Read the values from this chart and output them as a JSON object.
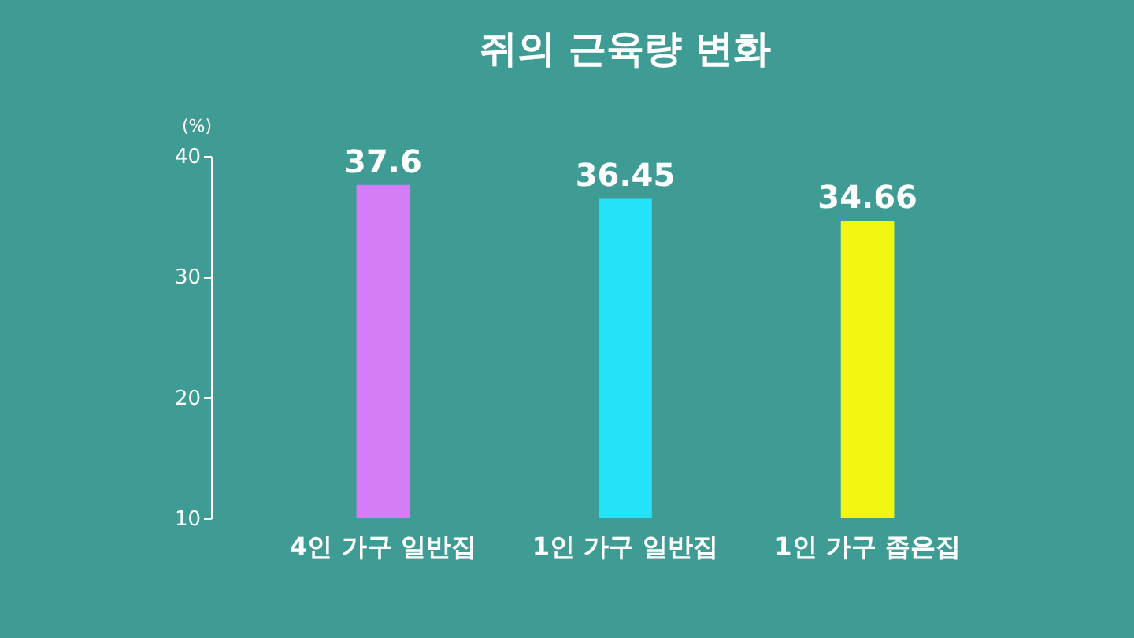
{
  "chart_data": {
    "type": "bar",
    "title": "쥐의 근육량 변화",
    "ylabel": "(%)",
    "categories": [
      "4인 가구 일반집",
      "1인 가구 일반집",
      "1인 가구 좁은집"
    ],
    "values": [
      37.6,
      36.45,
      34.66
    ],
    "colors": [
      "#d57cf7",
      "#24e2f7",
      "#f2f712"
    ],
    "ylim": [
      10,
      40
    ],
    "yticks": [
      10,
      20,
      30,
      40
    ],
    "grid": false,
    "data_labels": true
  }
}
